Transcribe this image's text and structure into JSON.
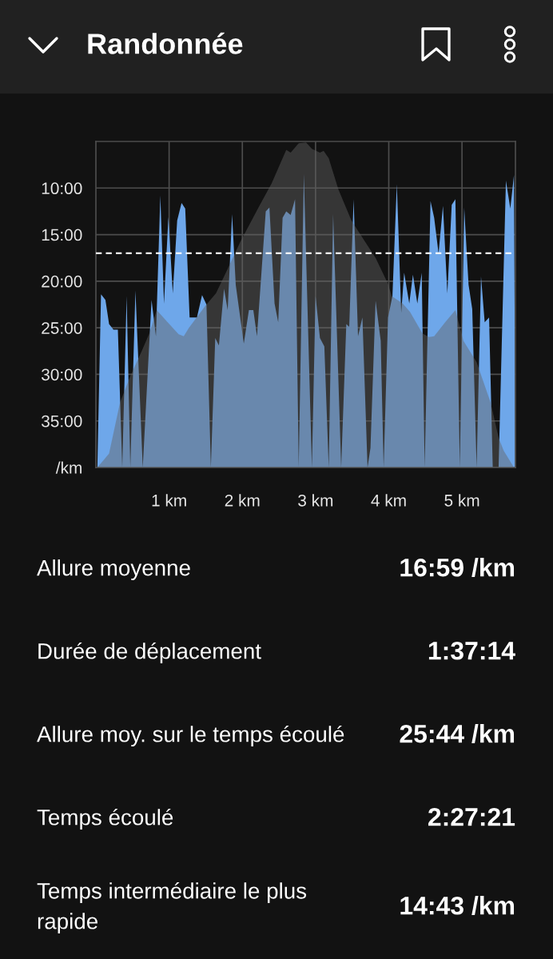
{
  "chart_data": {
    "type": "area",
    "title": "Randonnée",
    "xlim": [
      0,
      5.73
    ],
    "xticks": [
      {
        "value": 1,
        "label": "1 km"
      },
      {
        "value": 2,
        "label": "2 km"
      },
      {
        "value": 3,
        "label": "3 km"
      },
      {
        "value": 4,
        "label": "4 km"
      },
      {
        "value": 5,
        "label": "5 km"
      }
    ],
    "ylim": [
      40,
      5
    ],
    "yticks": [
      {
        "value": 10,
        "label": "10:00"
      },
      {
        "value": 15,
        "label": "15:00"
      },
      {
        "value": 20,
        "label": "20:00"
      },
      {
        "value": 25,
        "label": "25:00"
      },
      {
        "value": 30,
        "label": "30:00"
      },
      {
        "value": 35,
        "label": "35:00"
      },
      {
        "value": 40,
        "label": "/km"
      }
    ],
    "grid": true,
    "series": [
      {
        "color": "#6ea7ea",
        "x": [
          0.02,
          0.07,
          0.13,
          0.18,
          0.24,
          0.3,
          0.36,
          0.42,
          0.47,
          0.54,
          0.64,
          0.76,
          0.82,
          0.88,
          0.93,
          0.99,
          1.05,
          1.11,
          1.17,
          1.22,
          1.28,
          1.38,
          1.45,
          1.51,
          1.57,
          1.63,
          1.68,
          1.75,
          1.8,
          1.86,
          1.91,
          2.02,
          2.09,
          2.15,
          2.2,
          2.32,
          2.37,
          2.44,
          2.49,
          2.55,
          2.6,
          2.66,
          2.72,
          2.77,
          2.84,
          2.95,
          3.0,
          3.06,
          3.12,
          3.18,
          3.24,
          3.35,
          3.42,
          3.46,
          3.52,
          3.58,
          3.64,
          3.71,
          3.75,
          3.82,
          3.89,
          3.93,
          3.99,
          4.05,
          4.11,
          4.17,
          4.21,
          4.28,
          4.33,
          4.39,
          4.45,
          4.49,
          4.57,
          4.62,
          4.68,
          4.74,
          4.8,
          4.86,
          4.91,
          4.97,
          5.03,
          5.09,
          5.14,
          5.2,
          5.26,
          5.31,
          5.37,
          5.42,
          5.5,
          5.6,
          5.66,
          5.71,
          5.73
        ],
        "values": [
          40,
          21.4,
          22.0,
          24.6,
          25.2,
          25.2,
          40,
          21.6,
          40,
          21.0,
          40,
          22.0,
          25.9,
          10.8,
          22.4,
          13.1,
          21.3,
          13.5,
          11.6,
          12.2,
          23.9,
          23.9,
          21.5,
          22.5,
          40,
          26.1,
          26.9,
          20.8,
          23.1,
          12.8,
          20.4,
          26.7,
          23.1,
          23.1,
          25.9,
          12.5,
          12.1,
          22.4,
          24.4,
          13.2,
          12.5,
          12.9,
          11.2,
          40,
          8.5,
          40,
          21.6,
          26.1,
          27.0,
          40,
          12.8,
          40,
          24.6,
          24.9,
          11.2,
          25.9,
          23.9,
          40,
          37.9,
          22.1,
          26.4,
          40,
          23.9,
          21.6,
          9.6,
          23.4,
          19.1,
          22.4,
          19.3,
          22.4,
          19.1,
          40,
          11.4,
          13.2,
          17.0,
          11.9,
          21.3,
          11.8,
          11.2,
          40,
          12.1,
          20.4,
          23.0,
          40,
          19.5,
          24.4,
          23.9,
          40,
          40,
          9.2,
          12.2,
          8.6,
          40
        ]
      },
      {
        "color": "#646464",
        "x": [
          0.02,
          0.18,
          0.33,
          0.47,
          0.62,
          0.73,
          0.83,
          0.98,
          1.13,
          1.2,
          1.27,
          1.49,
          1.64,
          1.78,
          1.97,
          2.22,
          2.4,
          2.6,
          2.66,
          2.77,
          2.87,
          2.95,
          3.06,
          3.11,
          3.18,
          3.31,
          3.49,
          3.68,
          3.82,
          3.93,
          3.99,
          4.04,
          4.19,
          4.29,
          4.46,
          4.55,
          4.62,
          4.77,
          4.91,
          5.02,
          5.2,
          5.39,
          5.5,
          5.57,
          5.71
        ],
        "values": [
          40,
          38.5,
          33.0,
          30.2,
          27.6,
          25.6,
          23.1,
          24.4,
          25.7,
          25.9,
          25.0,
          22.7,
          21.3,
          19.0,
          15.8,
          12.1,
          9.5,
          5.9,
          6.2,
          5.2,
          5.1,
          5.8,
          6.2,
          6.0,
          6.8,
          10.1,
          13.5,
          15.8,
          17.5,
          19.3,
          20.3,
          21.6,
          22.4,
          23.3,
          25.6,
          26.0,
          25.9,
          24.4,
          23.1,
          26.4,
          28.7,
          33.0,
          36.8,
          38.2,
          40
        ]
      }
    ],
    "ref_lines": [
      {
        "axis": "y",
        "value": 17,
        "color": "#ffffff",
        "line_style": "dashed"
      }
    ],
    "annotations": [
      "Allure moyenne",
      "16:59 /km",
      "Durée de déplacement",
      "1:37:14",
      "Allure moy. sur le temps écoulé",
      "25:44 /km",
      "Temps écoulé",
      "2:27:21",
      "Temps intermédiaire le plus rapide",
      "14:43 /km"
    ]
  }
}
